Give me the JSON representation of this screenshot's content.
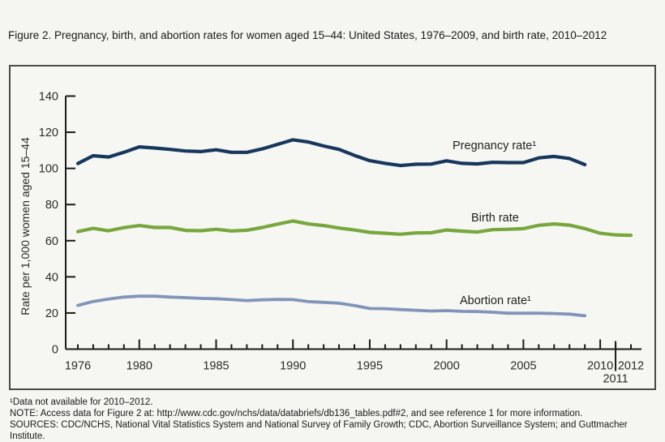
{
  "figure": {
    "title": "Figure 2. Pregnancy, birth, and abortion rates for women aged 15–44: United States, 1976–2009, and birth rate, 2010–2012",
    "footnote_data": "¹Data not available for 2010–2012.",
    "footnote_note": "NOTE: Access data for Figure 2 at: http://www.cdc.gov/nchs/data/databriefs/db136_tables.pdf#2, and see reference 1 for more information.",
    "footnote_sources": "SOURCES: CDC/NCHS, National Vital Statistics System and National Survey of Family Growth; CDC, Abortion Surveillance System; and Guttmacher Institute."
  },
  "chart_data": {
    "type": "line",
    "title": "Pregnancy, birth, and abortion rates for women aged 15–44: United States, 1976–2009, and birth rate, 2010–2012",
    "ylabel": "Rate per 1,000 women aged 15–44",
    "xlabel": "",
    "ylim": [
      0,
      140
    ],
    "xlim": [
      1976,
      2012
    ],
    "grid": false,
    "legend_position": "inline-labels",
    "axis_color": "#1a1a1a",
    "y_ticks": [
      0,
      20,
      40,
      60,
      80,
      100,
      120,
      140
    ],
    "x_minor_tick_every": 1,
    "x_major_ticks": [
      1980,
      1985,
      1990,
      1995,
      2000,
      2005,
      2010
    ],
    "x_tick_labels": [
      "1976",
      "1980",
      "1985",
      "1990",
      "1995",
      "2000",
      "2005",
      "2010",
      "2012"
    ],
    "x_sub_label": "2011",
    "x_divider_year": 2011,
    "series": [
      {
        "name": "Pregnancy rate¹",
        "color": "#17375e",
        "stroke_width": 4.2,
        "x_start": 1976,
        "values": [
          102.7,
          107.0,
          106.3,
          108.9,
          111.9,
          111.3,
          110.5,
          109.6,
          109.3,
          110.3,
          108.9,
          108.9,
          110.8,
          113.3,
          115.8,
          114.6,
          112.4,
          110.5,
          107.2,
          104.3,
          102.8,
          101.6,
          102.3,
          102.4,
          104.2,
          102.8,
          102.5,
          103.4,
          103.2,
          103.2,
          105.8,
          106.6,
          105.5,
          102.1
        ]
      },
      {
        "name": "Birth rate",
        "color": "#77a73d",
        "stroke_width": 4.2,
        "x_start": 1976,
        "values": [
          65.0,
          66.8,
          65.5,
          67.2,
          68.4,
          67.3,
          67.3,
          65.7,
          65.5,
          66.3,
          65.4,
          65.8,
          67.3,
          69.2,
          70.9,
          69.3,
          68.4,
          67.0,
          65.9,
          64.6,
          64.1,
          63.6,
          64.3,
          64.4,
          65.9,
          65.3,
          64.8,
          66.1,
          66.3,
          66.7,
          68.5,
          69.3,
          68.6,
          66.7,
          64.1,
          63.2,
          63.0
        ]
      },
      {
        "name": "Abortion rate¹",
        "color": "#8095b9",
        "stroke_width": 3.8,
        "x_start": 1976,
        "values": [
          24.2,
          26.4,
          27.7,
          28.8,
          29.3,
          29.3,
          28.8,
          28.5,
          28.1,
          27.9,
          27.4,
          26.9,
          27.3,
          27.5,
          27.4,
          26.3,
          25.9,
          25.4,
          24.1,
          22.5,
          22.4,
          21.9,
          21.5,
          21.1,
          21.3,
          20.9,
          20.8,
          20.4,
          19.9,
          19.9,
          19.9,
          19.7,
          19.4,
          18.5
        ]
      }
    ]
  }
}
